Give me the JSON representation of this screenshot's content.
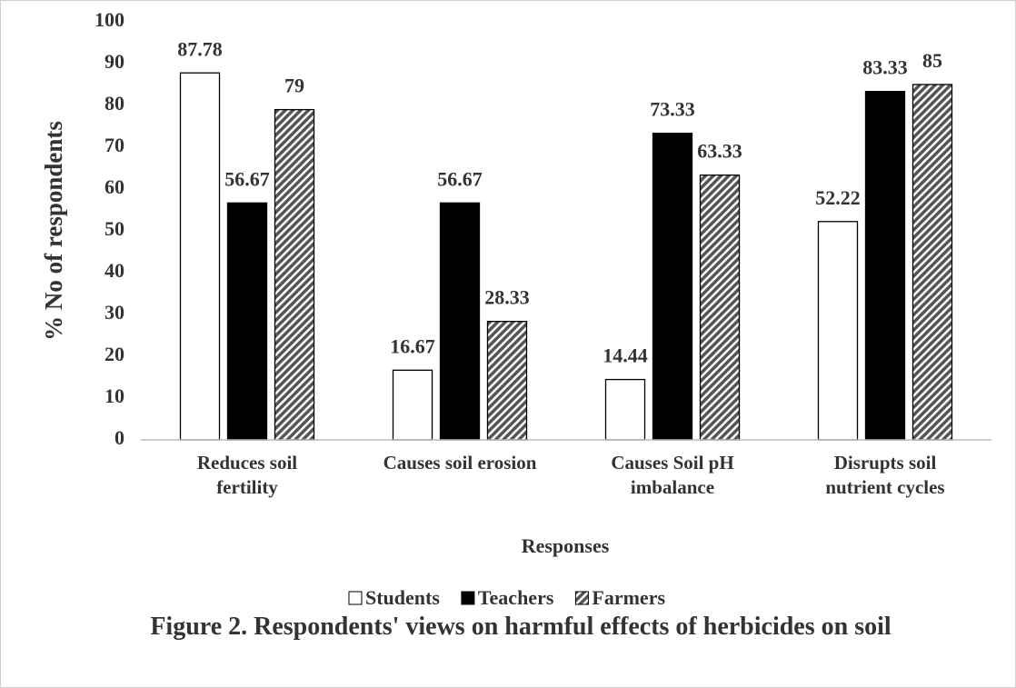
{
  "chart_data": {
    "type": "bar",
    "title": "Figure 2. Respondents' views on harmful effects of herbicides on soil",
    "x_label": "Responses",
    "y_label": "% No of respondents",
    "categories": [
      "Reduces soil fertility",
      "Causes soil erosion",
      "Causes Soil pH imbalance",
      "Disrupts soil nutrient cycles"
    ],
    "series": [
      {
        "name": "Students",
        "color": "#ffffff",
        "values": [
          87.78,
          16.67,
          14.44,
          52.22
        ]
      },
      {
        "name": "Teachers",
        "color": "#000000",
        "values": [
          56.67,
          56.67,
          73.33,
          83.33
        ]
      },
      {
        "name": "Farmers",
        "color": "#555555",
        "pattern": "diagonal",
        "values": [
          79,
          28.33,
          63.33,
          85
        ]
      }
    ],
    "ylim": [
      0,
      100
    ],
    "yticks": [
      0,
      10,
      20,
      30,
      40,
      50,
      60,
      70,
      80,
      90,
      100
    ],
    "grid": false,
    "legend": "bottom"
  }
}
